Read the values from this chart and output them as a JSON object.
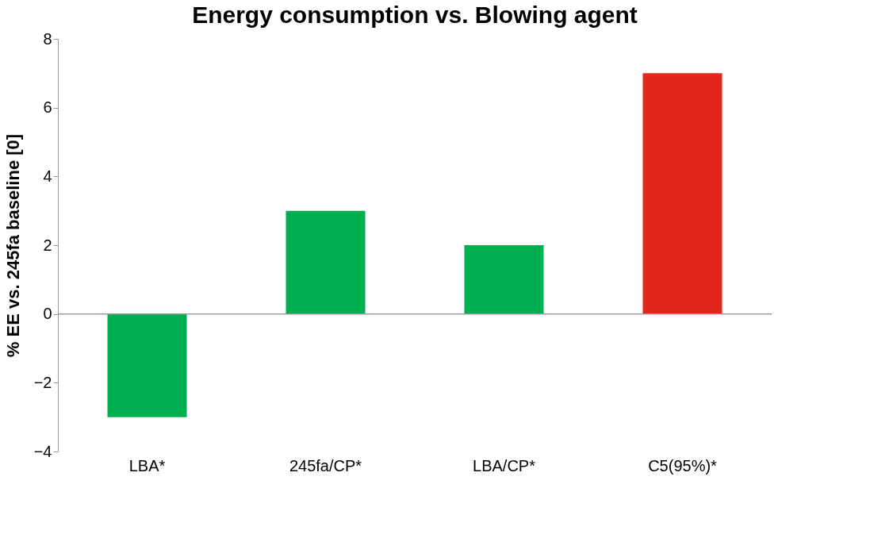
{
  "chart_data": {
    "type": "bar",
    "title": "Energy consumption  vs. Blowing agent",
    "ylabel": "% EE  vs. 245fa baseline [0]",
    "categories": [
      "LBA*",
      "245fa/CP*",
      "LBA/CP*",
      "C5(95%)*"
    ],
    "values": [
      -3,
      3,
      2,
      7
    ],
    "colors": [
      "#00b050",
      "#00b050",
      "#00b050",
      "#e3261c"
    ],
    "ylim": [
      -4,
      8
    ],
    "yticks": [
      -4,
      -2,
      0,
      2,
      4,
      6,
      8
    ],
    "grid": false,
    "ref_lines": [
      {
        "axis": "y",
        "value": 0,
        "color": "#999999",
        "line_style": "solid"
      }
    ]
  }
}
